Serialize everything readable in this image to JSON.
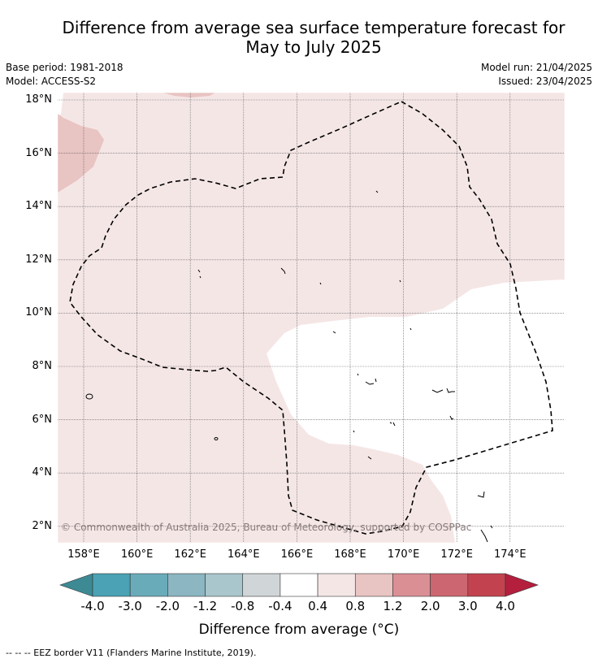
{
  "title_line1": "Difference from average sea surface temperature forecast for",
  "title_line2": "May to July 2025",
  "meta": {
    "base_period": "Base period: 1981-2018",
    "model": "Model: ACCESS-S2",
    "model_run": "Model run: 21/04/2025",
    "issued": "Issued: 23/04/2025"
  },
  "map": {
    "lat_labels": [
      "18°N",
      "16°N",
      "14°N",
      "12°N",
      "10°N",
      "8°N",
      "6°N",
      "4°N",
      "2°N"
    ],
    "lat_values": [
      18,
      16,
      14,
      12,
      10,
      8,
      6,
      4,
      2
    ],
    "lon_labels": [
      "158°E",
      "160°E",
      "162°E",
      "164°E",
      "166°E",
      "168°E",
      "170°E",
      "172°E",
      "174°E"
    ],
    "lon_values": [
      158,
      160,
      162,
      164,
      166,
      168,
      170,
      172,
      174
    ],
    "copyright": "© Commonwealth of Australia 2025, Bureau of Meteorology, supported by COSPPac"
  },
  "colorbar": {
    "ticks": [
      "-4.0",
      "-3.0",
      "-2.0",
      "-1.2",
      "-0.8",
      "-0.4",
      "0.4",
      "0.8",
      "1.2",
      "2.0",
      "3.0",
      "4.0"
    ],
    "colors": [
      "#4aa2b4",
      "#6aabba",
      "#8bb6c2",
      "#a8c6cb",
      "#d0d6d8",
      "#ffffff",
      "#f5e6e6",
      "#e8c4c2",
      "#d98f94",
      "#cc6670",
      "#c2434f"
    ],
    "under_color": "#3d8a94",
    "over_color": "#b41f3e",
    "label": "Difference from average (°C)"
  },
  "footnote": "--  --  -- EEZ border V11 (Flanders Marine Institute, 2019)."
}
